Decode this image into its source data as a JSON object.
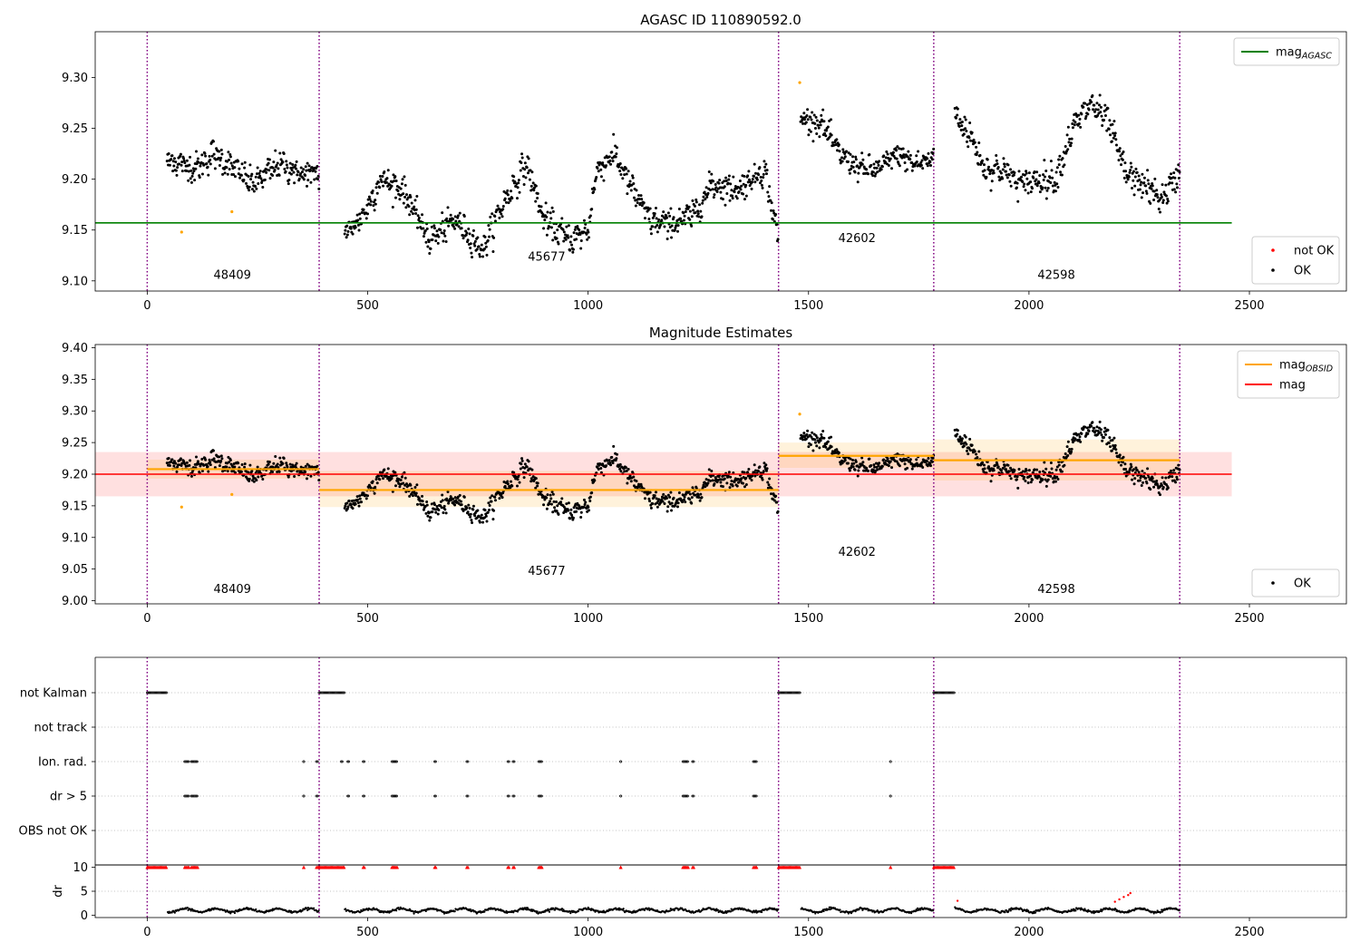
{
  "figure": {
    "colors": {
      "agasc_line": "#008000",
      "mag_line": "#ff0000",
      "obsid_line": "#ffa500",
      "not_ok": "#ff0000",
      "ok": "#000000",
      "boundary": "#800080"
    }
  },
  "chart_data": [
    {
      "type": "scatter",
      "title": "AGASC ID 110890592.0",
      "xlim": [
        -118,
        2720
      ],
      "ylim": [
        9.09,
        9.345
      ],
      "xticks": [
        "0",
        "500",
        "1000",
        "1500",
        "2000",
        "2500"
      ],
      "yticks": [
        "9.10",
        "9.15",
        "9.20",
        "9.25",
        "9.30"
      ],
      "obsid_boundaries": [
        0,
        390,
        1432,
        1784,
        2342
      ],
      "obsid_labels": [
        {
          "x": 193,
          "y": 9.102,
          "text": "48409"
        },
        {
          "x": 906,
          "y": 9.12,
          "text": "45677"
        },
        {
          "x": 1610,
          "y": 9.138,
          "text": "42602"
        },
        {
          "x": 2062,
          "y": 9.102,
          "text": "42598"
        }
      ],
      "hlines": [
        {
          "y": 9.157,
          "x": [
            -118,
            2460
          ],
          "color": "#008000"
        }
      ],
      "legends": [
        {
          "position": "upper right",
          "entries": [
            {
              "label_main": "mag",
              "label_sub": "AGASC",
              "marker": "line",
              "color": "#008000"
            }
          ]
        },
        {
          "position": "lower right",
          "entries": [
            {
              "label_main": "not OK",
              "label_sub": "",
              "marker": "dot",
              "color": "#ff0000"
            },
            {
              "label_main": "OK",
              "label_sub": "",
              "marker": "dot",
              "color": "#000000"
            }
          ]
        }
      ],
      "series": [
        {
          "name": "not OK",
          "color": "#ffa500",
          "x": [
            78,
            192,
            1480
          ],
          "y": [
            9.148,
            9.168,
            9.295
          ]
        },
        {
          "name": "OK",
          "color": "#000000",
          "segments": [
            {
              "x": [
                45,
                390
              ],
              "trend": [
                [
                  45,
                  9.22
                ],
                [
                  110,
                  9.21
                ],
                [
                  150,
                  9.225
                ],
                [
                  200,
                  9.21
                ],
                [
                  240,
                  9.195
                ],
                [
                  300,
                  9.215
                ],
                [
                  350,
                  9.205
                ],
                [
                  390,
                  9.205
                ]
              ],
              "spread": 0.012
            },
            {
              "x": [
                448,
                1432
              ],
              "trend": [
                [
                  448,
                  9.145
                ],
                [
                  490,
                  9.165
                ],
                [
                  530,
                  9.2
                ],
                [
                  580,
                  9.19
                ],
                [
                  640,
                  9.14
                ],
                [
                  700,
                  9.16
                ],
                [
                  760,
                  9.13
                ],
                [
                  800,
                  9.17
                ],
                [
                  860,
                  9.215
                ],
                [
                  900,
                  9.16
                ],
                [
                  960,
                  9.14
                ],
                [
                  1000,
                  9.15
                ],
                [
                  1020,
                  9.21
                ],
                [
                  1060,
                  9.225
                ],
                [
                  1100,
                  9.19
                ],
                [
                  1140,
                  9.16
                ],
                [
                  1180,
                  9.155
                ],
                [
                  1240,
                  9.165
                ],
                [
                  1280,
                  9.195
                ],
                [
                  1340,
                  9.19
                ],
                [
                  1400,
                  9.21
                ],
                [
                  1432,
                  9.14
                ]
              ],
              "spread": 0.012
            },
            {
              "x": [
                1482,
                1784
              ],
              "trend": [
                [
                  1482,
                  9.26
                ],
                [
                  1530,
                  9.255
                ],
                [
                  1570,
                  9.225
                ],
                [
                  1620,
                  9.21
                ],
                [
                  1660,
                  9.21
                ],
                [
                  1700,
                  9.225
                ],
                [
                  1740,
                  9.215
                ],
                [
                  1784,
                  9.22
                ]
              ],
              "spread": 0.01
            },
            {
              "x": [
                1832,
                2342
              ],
              "trend": [
                [
                  1832,
                  9.265
                ],
                [
                  1870,
                  9.24
                ],
                [
                  1900,
                  9.21
                ],
                [
                  1940,
                  9.21
                ],
                [
                  1980,
                  9.195
                ],
                [
                  2020,
                  9.2
                ],
                [
                  2060,
                  9.2
                ],
                [
                  2100,
                  9.25
                ],
                [
                  2140,
                  9.275
                ],
                [
                  2180,
                  9.255
                ],
                [
                  2220,
                  9.205
                ],
                [
                  2260,
                  9.195
                ],
                [
                  2300,
                  9.18
                ],
                [
                  2342,
                  9.205
                ]
              ],
              "spread": 0.012
            }
          ]
        }
      ]
    },
    {
      "type": "scatter",
      "title": "Magnitude Estimates",
      "xlim": [
        -118,
        2720
      ],
      "ylim": [
        8.995,
        9.405
      ],
      "xticks": [
        "0",
        "500",
        "1000",
        "1500",
        "2000",
        "2500"
      ],
      "yticks": [
        "9.00",
        "9.05",
        "9.10",
        "9.15",
        "9.20",
        "9.25",
        "9.30",
        "9.35",
        "9.40"
      ],
      "obsid_boundaries": [
        0,
        390,
        1432,
        1784,
        2342
      ],
      "obsid_labels": [
        {
          "x": 193,
          "y": 9.012,
          "text": "48409"
        },
        {
          "x": 906,
          "y": 9.041,
          "text": "45677"
        },
        {
          "x": 1610,
          "y": 9.071,
          "text": "42602"
        },
        {
          "x": 2062,
          "y": 9.012,
          "text": "42598"
        }
      ],
      "bands": [
        {
          "x": [
            -118,
            2460
          ],
          "y": [
            9.165,
            9.235
          ],
          "color": "#ff0000",
          "opacity": 0.12
        },
        {
          "x": [
            0,
            390
          ],
          "y": [
            9.193,
            9.223
          ],
          "color": "#ffa500",
          "opacity": 0.14
        },
        {
          "x": [
            390,
            1432
          ],
          "y": [
            9.148,
            9.205
          ],
          "color": "#ffa500",
          "opacity": 0.14
        },
        {
          "x": [
            1432,
            1784
          ],
          "y": [
            9.21,
            9.25
          ],
          "color": "#ffa500",
          "opacity": 0.14
        },
        {
          "x": [
            1784,
            2342
          ],
          "y": [
            9.19,
            9.255
          ],
          "color": "#ffa500",
          "opacity": 0.14
        }
      ],
      "hlines": [
        {
          "y": 9.2,
          "x": [
            -118,
            2460
          ],
          "color": "#ff0000"
        },
        {
          "y": 9.208,
          "x": [
            0,
            390
          ],
          "color": "#ffa500"
        },
        {
          "y": 9.175,
          "x": [
            390,
            1432
          ],
          "color": "#ffa500"
        },
        {
          "y": 9.229,
          "x": [
            1432,
            1784
          ],
          "color": "#ffa500"
        },
        {
          "y": 9.222,
          "x": [
            1784,
            2342
          ],
          "color": "#ffa500"
        }
      ],
      "legends": [
        {
          "position": "upper right",
          "entries": [
            {
              "label_main": "mag",
              "label_sub": "OBSID",
              "marker": "line",
              "color": "#ffa500"
            },
            {
              "label_main": "mag",
              "label_sub": "",
              "marker": "line",
              "color": "#ff0000"
            }
          ]
        },
        {
          "position": "lower right",
          "entries": [
            {
              "label_main": "OK",
              "label_sub": "",
              "marker": "dot",
              "color": "#000000"
            }
          ]
        }
      ],
      "series": [
        {
          "name": "not OK",
          "color": "#ffa500",
          "x": [
            78,
            192,
            1480
          ],
          "y": [
            9.148,
            9.168,
            9.295
          ]
        },
        {
          "name": "OK",
          "color": "#000000",
          "same_as_panel": 0
        }
      ]
    },
    {
      "type": "scatter",
      "title": "",
      "xlim": [
        -118,
        2720
      ],
      "xticks": [
        "0",
        "500",
        "1000",
        "1500",
        "2000",
        "2500"
      ],
      "flag_rows": [
        "not Kalman",
        "not track",
        "Ion. rad.",
        "dr > 5",
        "OBS not OK"
      ],
      "obsid_boundaries": [
        0,
        390,
        1432,
        1784,
        2342
      ],
      "flags": {
        "not Kalman": [
          [
            0,
            45
          ],
          [
            390,
            448
          ],
          [
            1432,
            1482
          ],
          [
            1784,
            1832
          ]
        ],
        "not track": [],
        "Ion. rad.": [
          [
            85,
            95
          ],
          [
            100,
            115
          ],
          [
            355,
            357
          ],
          [
            384,
            387
          ],
          [
            440,
            443
          ],
          [
            455,
            458
          ],
          [
            490,
            494
          ],
          [
            555,
            568
          ],
          [
            652,
            655
          ],
          [
            725,
            728
          ],
          [
            818,
            821
          ],
          [
            830,
            833
          ],
          [
            888,
            896
          ],
          [
            1074,
            1076
          ],
          [
            1215,
            1228
          ],
          [
            1237,
            1241
          ],
          [
            1375,
            1383
          ],
          [
            1686,
            1688
          ]
        ],
        "dr > 5": [
          [
            85,
            95
          ],
          [
            100,
            115
          ],
          [
            355,
            357
          ],
          [
            384,
            387
          ],
          [
            455,
            458
          ],
          [
            490,
            494
          ],
          [
            555,
            568
          ],
          [
            652,
            655
          ],
          [
            725,
            728
          ],
          [
            818,
            821
          ],
          [
            830,
            833
          ],
          [
            888,
            896
          ],
          [
            1074,
            1076
          ],
          [
            1215,
            1228
          ],
          [
            1237,
            1241
          ],
          [
            1375,
            1383
          ],
          [
            1686,
            1688
          ]
        ],
        "OBS not OK": []
      }
    },
    {
      "type": "scatter",
      "ylabel": "dr",
      "xlim": [
        -118,
        2720
      ],
      "ylim": [
        -0.5,
        10.5
      ],
      "xticks": [
        "0",
        "500",
        "1000",
        "1500",
        "2000",
        "2500"
      ],
      "yticks": [
        "0",
        "5",
        "10"
      ],
      "obsid_boundaries": [
        0,
        390,
        1432,
        1784,
        2342
      ],
      "clipped_at": 10,
      "gaps": [
        [
          0,
          45
        ],
        [
          390,
          448
        ],
        [
          1432,
          1482
        ],
        [
          1784,
          1832
        ]
      ],
      "red_markers_x": [
        [
          0,
          45
        ],
        [
          85,
          95
        ],
        [
          100,
          115
        ],
        [
          355,
          357
        ],
        [
          384,
          448
        ],
        [
          490,
          494
        ],
        [
          555,
          568
        ],
        [
          652,
          655
        ],
        [
          725,
          728
        ],
        [
          818,
          821
        ],
        [
          830,
          833
        ],
        [
          888,
          896
        ],
        [
          1074,
          1076
        ],
        [
          1215,
          1228
        ],
        [
          1237,
          1241
        ],
        [
          1375,
          1383
        ],
        [
          1432,
          1482
        ],
        [
          1686,
          1688
        ],
        [
          1784,
          1832
        ]
      ],
      "series": [
        {
          "name": "dr",
          "color": "#000000",
          "baseline": 1.0,
          "wiggle": 0.6
        },
        {
          "name": "dr not OK",
          "color": "#ff0000",
          "x": [
            1838,
            2195,
            2205,
            2215,
            2225,
            2230
          ],
          "y": [
            3.0,
            2.8,
            3.3,
            3.8,
            4.2,
            4.6
          ]
        }
      ]
    }
  ]
}
